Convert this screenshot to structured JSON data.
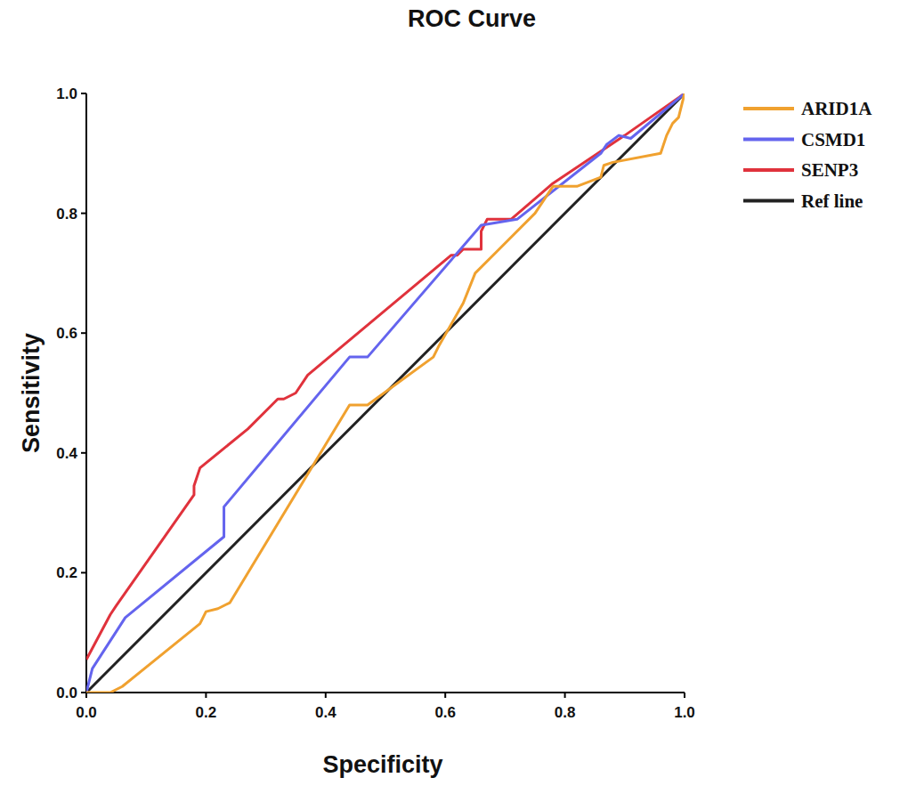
{
  "chart_data": {
    "type": "line",
    "title": "ROC Curve",
    "x_label": "Specificity",
    "y_label": "Sensitivity",
    "xlim": [
      0,
      1
    ],
    "ylim": [
      0,
      1
    ],
    "xticks": [
      {
        "value": 0,
        "label": "0.0"
      },
      0.2,
      0.4,
      0.6,
      0.8,
      {
        "value": 1,
        "label": "1.0"
      }
    ],
    "yticks": [
      {
        "value": 0,
        "label": "0.0"
      },
      0.2,
      0.4,
      0.6,
      0.8,
      {
        "value": 1,
        "label": "1.0"
      }
    ],
    "grid": false,
    "legend": "right",
    "series": [
      {
        "name": "ARID1A",
        "color": "#f0a12f",
        "x": [
          0,
          0.04,
          0.06,
          0.19,
          0.2,
          0.22,
          0.24,
          0.44,
          0.47,
          0.58,
          0.59,
          0.63,
          0.65,
          0.69,
          0.75,
          0.78,
          0.82,
          0.86,
          0.865,
          0.88,
          0.96,
          0.97,
          0.98,
          0.99,
          1
        ],
        "values": [
          0,
          0,
          0.01,
          0.115,
          0.135,
          0.14,
          0.15,
          0.48,
          0.48,
          0.56,
          0.58,
          0.65,
          0.7,
          0.74,
          0.8,
          0.845,
          0.845,
          0.86,
          0.88,
          0.885,
          0.9,
          0.93,
          0.95,
          0.96,
          1
        ]
      },
      {
        "name": "CSMD1",
        "color": "#6464ee",
        "x": [
          0,
          0.01,
          0.065,
          0.23,
          0.23,
          0.44,
          0.47,
          0.66,
          0.72,
          0.86,
          0.87,
          0.89,
          0.91,
          1
        ],
        "values": [
          0,
          0.04,
          0.125,
          0.26,
          0.31,
          0.56,
          0.56,
          0.78,
          0.79,
          0.9,
          0.915,
          0.93,
          0.925,
          1
        ]
      },
      {
        "name": "SENP3",
        "color": "#e0323c",
        "x": [
          0,
          0.04,
          0.05,
          0.18,
          0.18,
          0.19,
          0.27,
          0.32,
          0.33,
          0.35,
          0.37,
          0.61,
          0.62,
          0.63,
          0.66,
          0.66,
          0.67,
          0.71,
          0.78,
          0.9,
          1
        ],
        "values": [
          0.055,
          0.13,
          0.145,
          0.33,
          0.345,
          0.375,
          0.44,
          0.49,
          0.49,
          0.5,
          0.53,
          0.73,
          0.73,
          0.74,
          0.74,
          0.77,
          0.79,
          0.79,
          0.85,
          0.93,
          1
        ]
      },
      {
        "name": "Ref line",
        "color": "#222222",
        "x": [
          0,
          1
        ],
        "values": [
          0,
          1
        ]
      }
    ]
  }
}
